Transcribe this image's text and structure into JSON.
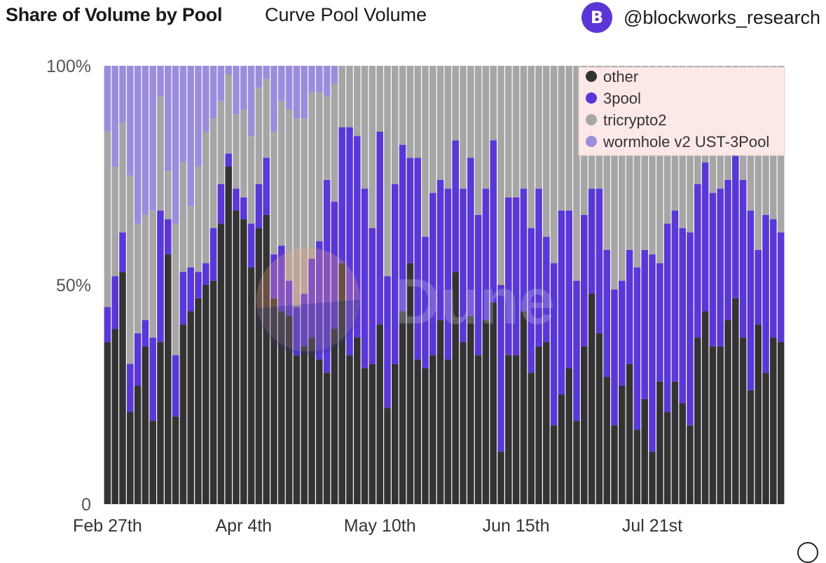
{
  "header": {
    "title": "Share of Volume by Pool",
    "subtitle": "Curve Pool Volume",
    "avatar_letter": "B",
    "handle": "@blockworks_research"
  },
  "watermark": {
    "text": "Dune"
  },
  "colors": {
    "other": "#333333",
    "3pool": "#5a37d7",
    "tricrypto2": "#a6a6a6",
    "wormhole v2 UST-3Pool": "#9b8ddc",
    "legend_bg": "#fde8e8"
  },
  "chart_data": {
    "type": "bar",
    "stacked": true,
    "normalized": true,
    "title": "Share of Volume by Pool",
    "subtitle": "Curve Pool Volume",
    "x_ticks": [
      "Feb 27th",
      "Apr 4th",
      "May 10th",
      "Jun 15th",
      "Jul 21st"
    ],
    "y_ticks": [
      "0",
      "50%",
      "100%"
    ],
    "ylim": [
      0,
      100
    ],
    "legend_position": "top-right",
    "x": [
      "2022-02-27",
      "2022-03-01",
      "2022-03-03",
      "2022-03-05",
      "2022-03-07",
      "2022-03-09",
      "2022-03-11",
      "2022-03-13",
      "2022-03-15",
      "2022-03-17",
      "2022-03-19",
      "2022-03-21",
      "2022-03-23",
      "2022-03-25",
      "2022-03-27",
      "2022-03-29",
      "2022-03-31",
      "2022-04-02",
      "2022-04-04",
      "2022-04-06",
      "2022-04-08",
      "2022-04-10",
      "2022-04-12",
      "2022-04-14",
      "2022-04-16",
      "2022-04-18",
      "2022-04-20",
      "2022-04-22",
      "2022-04-24",
      "2022-04-26",
      "2022-04-28",
      "2022-04-30",
      "2022-05-02",
      "2022-05-04",
      "2022-05-06",
      "2022-05-08",
      "2022-05-10",
      "2022-05-12",
      "2022-05-14",
      "2022-05-16",
      "2022-05-18",
      "2022-05-20",
      "2022-05-22",
      "2022-05-24",
      "2022-05-26",
      "2022-05-28",
      "2022-05-30",
      "2022-06-01",
      "2022-06-03",
      "2022-06-05",
      "2022-06-07",
      "2022-06-09",
      "2022-06-11",
      "2022-06-13",
      "2022-06-15",
      "2022-06-17",
      "2022-06-19",
      "2022-06-21",
      "2022-06-23",
      "2022-06-25",
      "2022-06-27",
      "2022-06-29",
      "2022-07-01",
      "2022-07-03",
      "2022-07-05",
      "2022-07-07",
      "2022-07-09",
      "2022-07-11",
      "2022-07-13",
      "2022-07-15",
      "2022-07-17",
      "2022-07-19",
      "2022-07-21",
      "2022-07-23",
      "2022-07-25",
      "2022-07-27",
      "2022-07-29",
      "2022-07-31",
      "2022-08-02",
      "2022-08-04",
      "2022-08-06",
      "2022-08-08",
      "2022-08-10",
      "2022-08-12",
      "2022-08-14",
      "2022-08-16",
      "2022-08-18",
      "2022-08-20",
      "2022-08-22",
      "2022-08-24"
    ],
    "series": [
      {
        "name": "other",
        "values": [
          37,
          40,
          53,
          21,
          27,
          36,
          19,
          37,
          57,
          20,
          41,
          44,
          47,
          50,
          51,
          64,
          77,
          67,
          65,
          54,
          63,
          66,
          47,
          44,
          43,
          34,
          36,
          38,
          33,
          30,
          40,
          55,
          34,
          38,
          31,
          32,
          41,
          22,
          32,
          44,
          55,
          33,
          31,
          34,
          42,
          33,
          53,
          37,
          43,
          34,
          42,
          46,
          12,
          34,
          34,
          44,
          30,
          36,
          37,
          18,
          25,
          31,
          19,
          36,
          48,
          39,
          29,
          18,
          27,
          32,
          17,
          24,
          12,
          28,
          21,
          28,
          23,
          18,
          38,
          44,
          36,
          36,
          42,
          47,
          38,
          26,
          41,
          30,
          38,
          37
        ]
      },
      {
        "name": "3pool",
        "values": [
          8,
          12,
          9,
          11,
          12,
          6,
          19,
          30,
          8,
          14,
          12,
          10,
          6,
          5,
          12,
          9,
          3,
          5,
          5,
          10,
          10,
          13,
          10,
          15,
          8,
          11,
          12,
          18,
          27,
          44,
          29,
          31,
          52,
          46,
          41,
          31,
          44,
          30,
          41,
          38,
          24,
          46,
          30,
          37,
          32,
          39,
          30,
          35,
          36,
          32,
          30,
          37,
          38,
          36,
          36,
          28,
          33,
          36,
          24,
          37,
          42,
          36,
          32,
          30,
          24,
          33,
          29,
          31,
          24,
          26,
          37,
          34,
          45,
          27,
          43,
          39,
          40,
          44,
          35,
          34,
          35,
          36,
          32,
          34,
          36,
          41,
          17,
          36,
          27,
          25
        ]
      },
      {
        "name": "tricrypto2",
        "values": [
          40,
          25,
          25,
          43,
          25,
          24,
          29,
          26,
          11,
          30,
          25,
          14,
          24,
          30,
          25,
          19,
          18,
          17,
          20,
          20,
          22,
          18,
          28,
          33,
          39,
          43,
          40,
          38,
          34,
          19,
          27,
          14,
          14,
          16,
          28,
          37,
          15,
          48,
          27,
          18,
          21,
          21,
          39,
          29,
          26,
          28,
          17,
          28,
          21,
          34,
          28,
          17,
          50,
          30,
          30,
          28,
          37,
          28,
          39,
          45,
          33,
          33,
          49,
          34,
          28,
          28,
          42,
          51,
          49,
          42,
          46,
          42,
          43,
          45,
          36,
          33,
          37,
          38,
          27,
          22,
          29,
          28,
          26,
          19,
          26,
          33,
          42,
          34,
          35,
          38
        ]
      },
      {
        "name": "wormhole v2 UST-3Pool",
        "values": [
          15,
          23,
          13,
          25,
          36,
          34,
          33,
          7,
          24,
          36,
          22,
          32,
          23,
          15,
          12,
          8,
          2,
          11,
          10,
          16,
          5,
          3,
          15,
          8,
          10,
          12,
          12,
          6,
          6,
          7,
          4,
          0,
          0,
          0,
          0,
          0,
          0,
          0,
          0,
          0,
          0,
          0,
          0,
          0,
          0,
          0,
          0,
          0,
          0,
          0,
          0,
          0,
          0,
          0,
          0,
          0,
          0,
          0,
          0,
          0,
          0,
          0,
          0,
          0,
          0,
          0,
          0,
          0,
          0,
          0,
          0,
          0,
          0,
          0,
          0,
          0,
          0,
          0,
          0,
          0,
          0,
          0,
          0,
          0,
          0,
          0,
          0,
          0,
          0,
          0
        ]
      }
    ]
  }
}
